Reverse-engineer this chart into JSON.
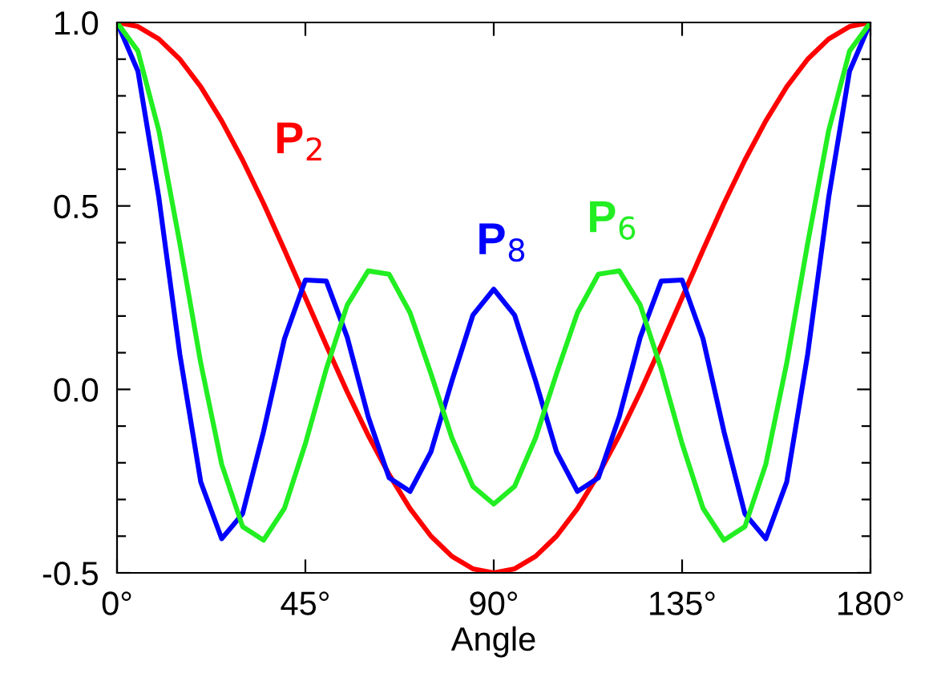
{
  "chart_data": {
    "type": "line",
    "xlabel": "Angle",
    "x": [
      0,
      5,
      10,
      15,
      20,
      25,
      30,
      35,
      40,
      45,
      50,
      55,
      60,
      65,
      70,
      75,
      80,
      85,
      90,
      95,
      100,
      105,
      110,
      115,
      120,
      125,
      130,
      135,
      140,
      145,
      150,
      155,
      160,
      165,
      170,
      175,
      180
    ],
    "series": [
      {
        "name": "P$_{2}$",
        "color": "#ff0000",
        "values": [
          1.0,
          0.989,
          0.955,
          0.9,
          0.825,
          0.732,
          0.625,
          0.507,
          0.38,
          0.25,
          0.12,
          -0.007,
          -0.125,
          -0.232,
          -0.325,
          -0.4,
          -0.455,
          -0.489,
          -0.5,
          -0.489,
          -0.455,
          -0.4,
          -0.325,
          -0.232,
          -0.125,
          -0.007,
          0.12,
          0.25,
          0.38,
          0.507,
          0.625,
          0.732,
          0.825,
          0.9,
          0.955,
          0.989,
          1.0
        ]
      },
      {
        "name": "P$_{8}$",
        "color": "#0000ff",
        "values": [
          1.0,
          0.867,
          0.522,
          0.096,
          -0.252,
          -0.407,
          -0.339,
          -0.115,
          0.138,
          0.298,
          0.295,
          0.142,
          -0.074,
          -0.241,
          -0.278,
          -0.17,
          0.023,
          0.202,
          0.273,
          0.202,
          0.023,
          -0.17,
          -0.278,
          -0.241,
          -0.074,
          0.142,
          0.295,
          0.298,
          0.138,
          -0.115,
          -0.339,
          -0.407,
          -0.252,
          0.096,
          0.522,
          0.867,
          1.0
        ]
      },
      {
        "name": "P$_{6}$",
        "color": "#22ee22",
        "values": [
          1.0,
          0.922,
          0.705,
          0.398,
          0.072,
          -0.204,
          -0.374,
          -0.411,
          -0.324,
          -0.148,
          0.056,
          0.23,
          0.323,
          0.314,
          0.209,
          0.043,
          -0.132,
          -0.264,
          -0.3125,
          -0.264,
          -0.132,
          0.043,
          0.209,
          0.314,
          0.323,
          0.23,
          0.056,
          -0.148,
          -0.324,
          -0.411,
          -0.374,
          -0.204,
          0.072,
          0.398,
          0.705,
          0.922,
          1.0
        ]
      }
    ],
    "xlim": [
      0,
      180
    ],
    "xticks": [
      {
        "value": 0,
        "label": "0°"
      },
      {
        "value": 45,
        "label": "45°"
      },
      {
        "value": 90,
        "label": "90°"
      },
      {
        "value": 135,
        "label": "135°"
      },
      {
        "value": 180,
        "label": "180°"
      }
    ],
    "ylim": [
      -0.5,
      1.0
    ],
    "yticks": [
      {
        "value": -0.5,
        "label": "-0.5"
      },
      {
        "value": -0.4,
        "label": null
      },
      {
        "value": -0.3,
        "label": null
      },
      {
        "value": -0.2,
        "label": null
      },
      {
        "value": -0.1,
        "label": null
      },
      {
        "value": 0.0,
        "label": "0.0"
      },
      {
        "value": 0.1,
        "label": null
      },
      {
        "value": 0.2,
        "label": null
      },
      {
        "value": 0.3,
        "label": null
      },
      {
        "value": 0.4,
        "label": null
      },
      {
        "value": 0.5,
        "label": "0.5"
      },
      {
        "value": 0.6,
        "label": null
      },
      {
        "value": 0.7,
        "label": null
      },
      {
        "value": 0.8,
        "label": null
      },
      {
        "value": 0.9,
        "label": null
      },
      {
        "value": 1.0,
        "label": "1.0"
      }
    ],
    "grid": false,
    "legend": false,
    "marker": "none",
    "line_style": "solid"
  }
}
